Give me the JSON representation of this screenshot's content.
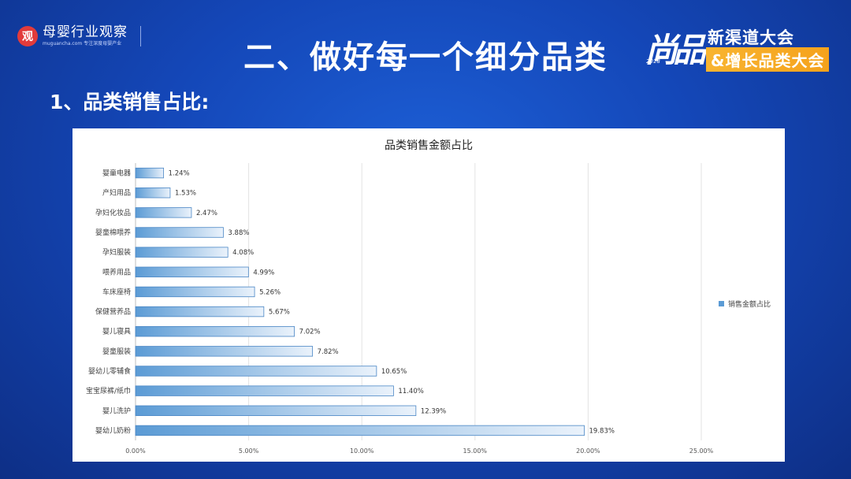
{
  "header": {
    "logo_icon_text": "观",
    "logo_name": "母婴行业观察",
    "logo_sub": "muguancha.com 专注深度母婴产业",
    "title": "二、做好每一个细分品类",
    "event_script": "尚品",
    "event_script_small": "2018",
    "event_line1": "新渠道大会",
    "event_line2": "&增长品类大会"
  },
  "section": {
    "subtitle": "1、品类销售占比:"
  },
  "chart_data": {
    "type": "bar",
    "orientation": "horizontal",
    "title": "品类销售金额占比",
    "categories": [
      "婴童电器",
      "产妇用品",
      "孕妇化妆品",
      "婴童棉喂养",
      "孕妇服装",
      "喂养用品",
      "车床座椅",
      "保健营养品",
      "婴儿寝具",
      "婴童服装",
      "婴幼儿零辅食",
      "宝宝尿裤/纸巾",
      "婴儿洗护",
      "婴幼儿奶粉"
    ],
    "series": [
      {
        "name": "销售金额占比",
        "values": [
          1.24,
          1.53,
          2.47,
          3.88,
          4.08,
          4.99,
          5.26,
          5.67,
          7.02,
          7.82,
          10.65,
          11.4,
          12.39,
          19.83
        ],
        "labels": [
          "1.24%",
          "1.53%",
          "2.47%",
          "3.88%",
          "4.08%",
          "4.99%",
          "5.26%",
          "5.67%",
          "7.02%",
          "7.82%",
          "10.65%",
          "11.40%",
          "12.39%",
          "19.83%"
        ]
      }
    ],
    "xlim": [
      0,
      25
    ],
    "xticks": [
      0,
      5,
      10,
      15,
      20,
      25
    ],
    "xtick_labels": [
      "0.00%",
      "5.00%",
      "10.00%",
      "15.00%",
      "20.00%",
      "25.00%"
    ],
    "grid": true,
    "legend_position": "right",
    "colors": {
      "bar_dark": "#5b9bd5",
      "bar_light": "#eaf2fb",
      "bar_edge": "#4a86c5"
    }
  }
}
